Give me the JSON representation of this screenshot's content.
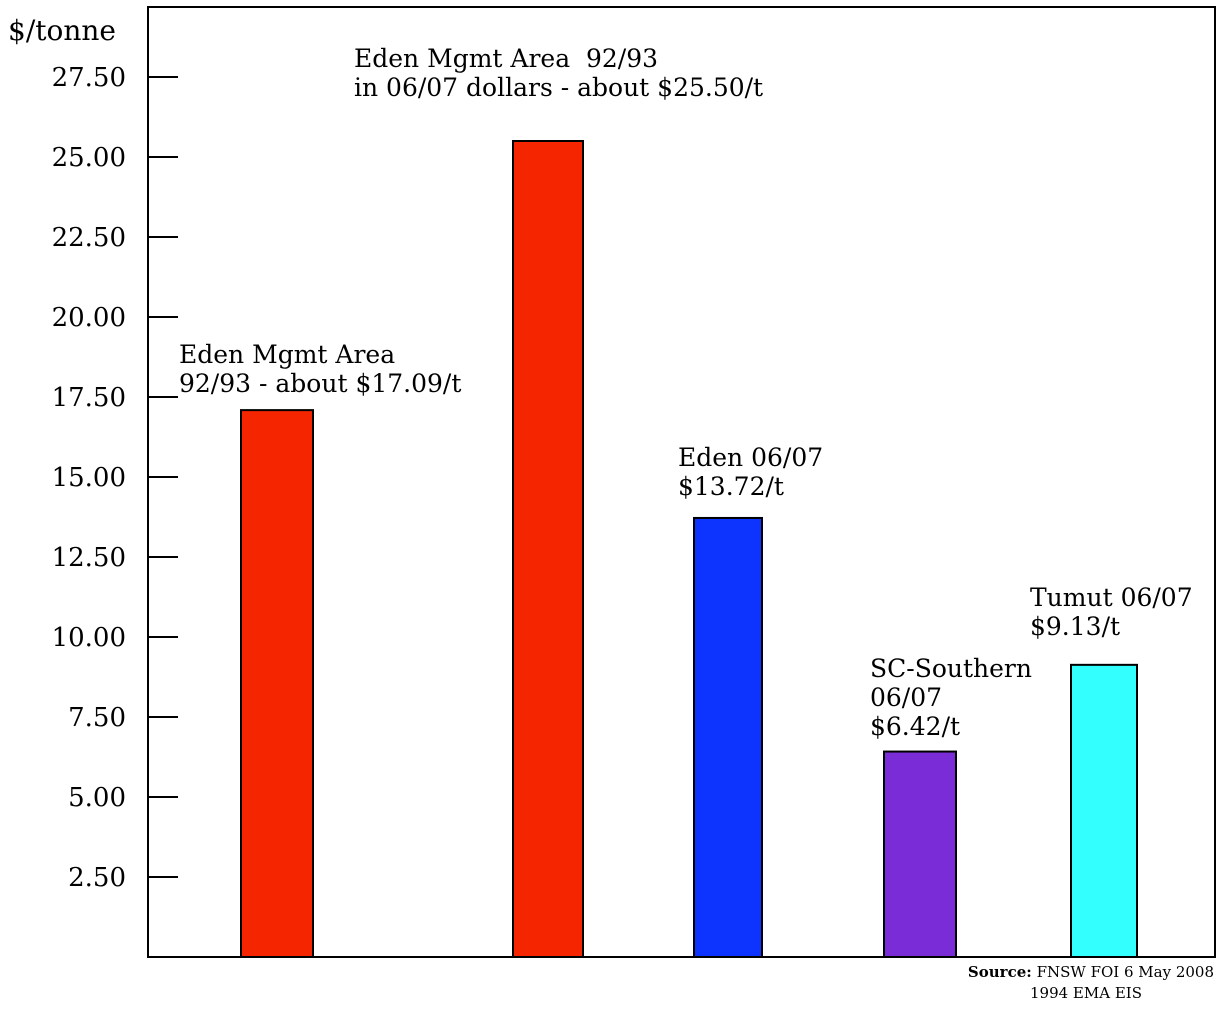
{
  "chart_data": {
    "type": "bar",
    "ylabel": "$/tonne",
    "ylim": [
      0,
      30
    ],
    "y_ticks": [
      "2.50",
      "5.00",
      "7.50",
      "10.00",
      "12.50",
      "15.00",
      "17.50",
      "20.00",
      "22.50",
      "25.00",
      "27.50"
    ],
    "y_tick_values": [
      2.5,
      5,
      7.5,
      10,
      12.5,
      15,
      17.5,
      20,
      22.5,
      25,
      27.5
    ],
    "grid": false,
    "legend": "none",
    "bars": [
      {
        "value": 17.09,
        "color": "#f52500",
        "label_lines": [
          "Eden Mgmt Area",
          "92/93 - about $17.09/t"
        ]
      },
      {
        "value": 25.5,
        "color": "#f52500",
        "label_lines": [
          "Eden Mgmt Area  92/93",
          "in 06/07 dollars - about $25.50/t"
        ]
      },
      {
        "value": 13.72,
        "color": "#0d33ff",
        "label_lines": [
          "Eden 06/07",
          "$13.72/t"
        ]
      },
      {
        "value": 6.42,
        "color": "#7a2dd6",
        "label_lines": [
          "SC-Southern",
          "06/07",
          "$6.42/t"
        ]
      },
      {
        "value": 9.13,
        "color": "#33ffff",
        "label_lines": [
          "Tumut 06/07",
          "$9.13/t"
        ]
      }
    ]
  },
  "source": {
    "label": "Source:",
    "line1": "FNSW FOI 6 May 2008",
    "line2": "1994 EMA EIS"
  }
}
